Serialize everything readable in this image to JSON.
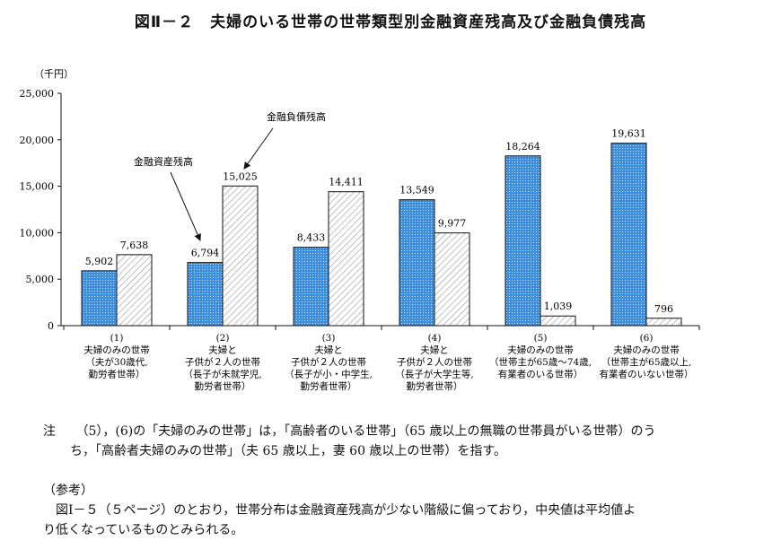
{
  "title": "図Ⅱ－２　夫婦のいる世帯の世帯類型別金融資産残高及び金融負債残高",
  "chart_data": {
    "type": "bar",
    "yunit": "（千円）",
    "ylim": [
      0,
      25000
    ],
    "yticks": [
      0,
      5000,
      10000,
      15000,
      20000,
      25000
    ],
    "ytick_labels": [
      "0",
      "5,000",
      "10,000",
      "15,000",
      "20,000",
      "25,000"
    ],
    "categories": [
      [
        "(1)",
        "夫婦のみの世帯",
        "（夫が30歳代,",
        "勤労者世帯）"
      ],
      [
        "(2)",
        "夫婦と",
        "子供が２人の世帯",
        "（長子が未就学児,",
        "勤労者世帯）"
      ],
      [
        "(3)",
        "夫婦と",
        "子供が２人の世帯",
        "（長子が小・中学生,",
        "勤労者世帯）"
      ],
      [
        "(4)",
        "夫婦と",
        "子供が２人の世帯",
        "（長子が大学生等,",
        "勤労者世帯）"
      ],
      [
        "(5)",
        "夫婦のみの世帯",
        "（世帯主が65歳～74歳,",
        "有業者のいる世帯）"
      ],
      [
        "(6)",
        "夫婦のみの世帯",
        "（世帯主が65歳以上,",
        "有業者のいない世帯）"
      ]
    ],
    "series": [
      {
        "name": "金融資産残高",
        "values": [
          5902,
          6794,
          8433,
          13549,
          18264,
          19631
        ],
        "labels": [
          "5,902",
          "6,794",
          "8,433",
          "13,549",
          "18,264",
          "19,631"
        ],
        "color": "#4a90d9"
      },
      {
        "name": "金融負債残高",
        "values": [
          7638,
          15025,
          14411,
          9977,
          1039,
          796
        ],
        "labels": [
          "7,638",
          "15,025",
          "14,411",
          "9,977",
          "1,039",
          "796"
        ],
        "color": "#ffffff"
      }
    ],
    "annotations": [
      "金融資産残高",
      "金融負債残高"
    ]
  },
  "note": {
    "label": "注",
    "line1": "（5），(6)の「夫婦のみの世帯」は，「高齢者のいる世帯」（65 歳以上の無職の世帯員がいる世帯）のう",
    "line2": "ち，「高齢者夫婦のみの世帯」（夫 65 歳以上，妻 60 歳以上の世帯）を指す。"
  },
  "reference": {
    "heading": "（参考）",
    "line1": "図Ⅰ－５（５ページ）のとおり，世帯分布は金融資産残高が少ない階級に偏っており，中央値は平均値よ",
    "line2": "り低くなっているものとみられる。"
  }
}
